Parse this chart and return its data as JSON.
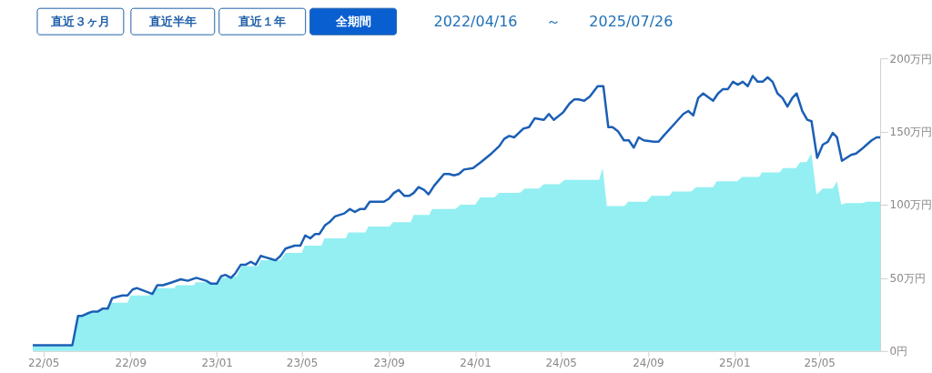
{
  "chart_data": {
    "type": "line",
    "annotations": [
      "直近３ヶ月",
      "直近半年",
      "直近１年",
      "全期間",
      "2022/04/16",
      "～",
      "2025/07/26"
    ],
    "xlim": [
      "2022-04-16",
      "2025-07-26"
    ],
    "xticks": [
      {
        "value": "2022-05-01",
        "label": "22/05"
      },
      {
        "value": "2022-09-01",
        "label": "22/09"
      },
      {
        "value": "2023-01-01",
        "label": "23/01"
      },
      {
        "value": "2023-05-01",
        "label": "23/05"
      },
      {
        "value": "2023-09-01",
        "label": "23/09"
      },
      {
        "value": "2024-01-01",
        "label": "24/01"
      },
      {
        "value": "2024-05-01",
        "label": "24/05"
      },
      {
        "value": "2024-09-01",
        "label": "24/09"
      },
      {
        "value": "2025-01-01",
        "label": "25/01"
      },
      {
        "value": "2025-05-01",
        "label": "25/05"
      }
    ],
    "ylim": [
      0,
      200
    ],
    "yticks": [
      {
        "value": 0,
        "label": "0円"
      },
      {
        "value": 50,
        "label": "50万円"
      },
      {
        "value": 100,
        "label": "100万円"
      },
      {
        "value": 150,
        "label": "150万円"
      },
      {
        "value": 200,
        "label": "200万円"
      }
    ],
    "series": [
      {
        "type": "area",
        "color": "#93eff2",
        "x": [
          "2022-04-16",
          "2022-06-11",
          "2022-06-19",
          "2022-07-01",
          "2022-07-16",
          "2022-07-24",
          "2022-07-30",
          "2022-08-04",
          "2022-08-28",
          "2022-09-01",
          "2022-09-27",
          "2022-10-08",
          "2022-11-02",
          "2022-11-05",
          "2022-11-30",
          "2022-12-02",
          "2022-12-15",
          "2022-12-22",
          "2023-01-03",
          "2023-01-08",
          "2023-01-29",
          "2023-02-05",
          "2023-02-28",
          "2023-03-04",
          "2023-04-01",
          "2023-04-08",
          "2023-05-01",
          "2023-05-05",
          "2023-05-29",
          "2023-06-02",
          "2023-07-02",
          "2023-07-06",
          "2023-07-30",
          "2023-08-03",
          "2023-09-02",
          "2023-09-07",
          "2023-10-02",
          "2023-10-06",
          "2023-10-28",
          "2023-11-01",
          "2023-12-04",
          "2023-12-11",
          "2024-01-01",
          "2024-01-08",
          "2024-01-28",
          "2024-02-04",
          "2024-03-04",
          "2024-03-11",
          "2024-03-31",
          "2024-04-07",
          "2024-04-29",
          "2024-05-06",
          "2024-06-24",
          "2024-06-29",
          "2024-07-05",
          "2024-07-30",
          "2024-08-04",
          "2024-08-30",
          "2024-09-06",
          "2024-10-01",
          "2024-10-06",
          "2024-11-01",
          "2024-11-08",
          "2024-12-02",
          "2024-12-07",
          "2025-01-05",
          "2025-01-12",
          "2025-02-05",
          "2025-02-09",
          "2025-03-06",
          "2025-03-11",
          "2025-03-29",
          "2025-04-04",
          "2025-04-13",
          "2025-04-20",
          "2025-04-27",
          "2025-05-06",
          "2025-05-20",
          "2025-05-26",
          "2025-06-01",
          "2025-06-08",
          "2025-07-01",
          "2025-07-07",
          "2025-07-26"
        ],
        "values": [
          4,
          4,
          24,
          25,
          27,
          28,
          28,
          33,
          33,
          38,
          38,
          43,
          43,
          45,
          45,
          47,
          47,
          46,
          46,
          50,
          51,
          58,
          58,
          62,
          62,
          67,
          67,
          72,
          72,
          77,
          77,
          81,
          81,
          85,
          85,
          88,
          88,
          93,
          93,
          97,
          97,
          100,
          100,
          105,
          105,
          108,
          108,
          111,
          111,
          114,
          114,
          117,
          117,
          125,
          99,
          99,
          102,
          102,
          106,
          106,
          109,
          109,
          112,
          112,
          116,
          116,
          119,
          119,
          122,
          122,
          125,
          125,
          129,
          129,
          135,
          107,
          111,
          111,
          116,
          100,
          101,
          101,
          102,
          102
        ]
      },
      {
        "color": "#1b5fb5",
        "x": [
          "2022-04-16",
          "2022-06-11",
          "2022-06-19",
          "2022-06-25",
          "2022-07-04",
          "2022-07-10",
          "2022-07-17",
          "2022-07-24",
          "2022-07-31",
          "2022-08-06",
          "2022-08-13",
          "2022-08-21",
          "2022-08-28",
          "2022-09-04",
          "2022-09-10",
          "2022-10-02",
          "2022-10-09",
          "2022-10-17",
          "2022-10-30",
          "2022-11-11",
          "2022-11-21",
          "2022-12-03",
          "2022-12-17",
          "2022-12-24",
          "2023-01-01",
          "2023-01-07",
          "2023-01-13",
          "2023-01-21",
          "2023-01-27",
          "2023-02-04",
          "2023-02-11",
          "2023-02-18",
          "2023-02-25",
          "2023-03-04",
          "2023-03-11",
          "2023-03-18",
          "2023-03-25",
          "2023-04-01",
          "2023-04-08",
          "2023-04-21",
          "2023-04-29",
          "2023-05-06",
          "2023-05-13",
          "2023-05-20",
          "2023-05-26",
          "2023-06-03",
          "2023-06-09",
          "2023-06-17",
          "2023-06-30",
          "2023-07-08",
          "2023-07-15",
          "2023-07-22",
          "2023-07-29",
          "2023-08-05",
          "2023-08-12",
          "2023-08-19",
          "2023-08-25",
          "2023-09-01",
          "2023-09-08",
          "2023-09-15",
          "2023-09-23",
          "2023-09-30",
          "2023-10-06",
          "2023-10-13",
          "2023-10-21",
          "2023-10-27",
          "2023-11-04",
          "2023-11-18",
          "2023-11-25",
          "2023-12-02",
          "2023-12-09",
          "2023-12-16",
          "2023-12-29",
          "2024-01-09",
          "2024-01-24",
          "2024-02-04",
          "2024-02-11",
          "2024-02-18",
          "2024-02-25",
          "2024-03-09",
          "2024-03-17",
          "2024-03-25",
          "2024-04-07",
          "2024-04-14",
          "2024-04-21",
          "2024-05-04",
          "2024-05-13",
          "2024-05-20",
          "2024-05-26",
          "2024-06-03",
          "2024-06-11",
          "2024-06-22",
          "2024-06-30",
          "2024-07-07",
          "2024-07-13",
          "2024-07-21",
          "2024-07-29",
          "2024-08-05",
          "2024-08-12",
          "2024-08-19",
          "2024-08-26",
          "2024-09-09",
          "2024-09-16",
          "2024-09-23",
          "2024-10-08",
          "2024-10-21",
          "2024-10-28",
          "2024-11-04",
          "2024-11-11",
          "2024-11-18",
          "2024-12-02",
          "2024-12-09",
          "2024-12-16",
          "2024-12-23",
          "2024-12-30",
          "2025-01-06",
          "2025-01-13",
          "2025-01-20",
          "2025-01-27",
          "2025-02-03",
          "2025-02-10",
          "2025-02-17",
          "2025-02-24",
          "2025-03-03",
          "2025-03-10",
          "2025-03-17",
          "2025-03-24",
          "2025-03-30",
          "2025-04-07",
          "2025-04-14",
          "2025-04-20",
          "2025-04-28",
          "2025-05-06",
          "2025-05-13",
          "2025-05-20",
          "2025-05-26",
          "2025-06-02",
          "2025-06-15",
          "2025-06-22",
          "2025-06-30",
          "2025-07-07",
          "2025-07-14",
          "2025-07-21",
          "2025-07-26"
        ],
        "values": [
          4,
          4,
          24,
          24,
          26,
          27,
          27,
          29,
          29,
          36,
          37,
          38,
          38,
          42,
          43,
          39,
          45,
          45,
          47,
          49,
          48,
          50,
          48,
          46,
          46,
          51,
          52,
          50,
          53,
          59,
          59,
          61,
          59,
          65,
          64,
          63,
          62,
          65,
          70,
          72,
          72,
          79,
          77,
          80,
          80,
          86,
          88,
          92,
          94,
          97,
          95,
          97,
          97,
          102,
          102,
          102,
          102,
          104,
          108,
          110,
          106,
          106,
          108,
          112,
          110,
          107,
          113,
          121,
          121,
          120,
          121,
          124,
          125,
          129,
          135,
          140,
          145,
          147,
          146,
          152,
          153,
          159,
          158,
          162,
          158,
          163,
          169,
          172,
          172,
          171,
          174,
          181,
          181,
          153,
          153,
          150,
          144,
          144,
          139,
          146,
          144,
          143,
          143,
          147,
          155,
          162,
          164,
          161,
          173,
          176,
          171,
          176,
          179,
          179,
          184,
          182,
          184,
          181,
          188,
          184,
          184,
          187,
          184,
          176,
          173,
          167,
          173,
          176,
          164,
          158,
          157,
          132,
          141,
          143,
          149,
          146,
          130,
          134,
          135,
          138,
          141,
          144,
          146,
          146
        ]
      }
    ]
  }
}
